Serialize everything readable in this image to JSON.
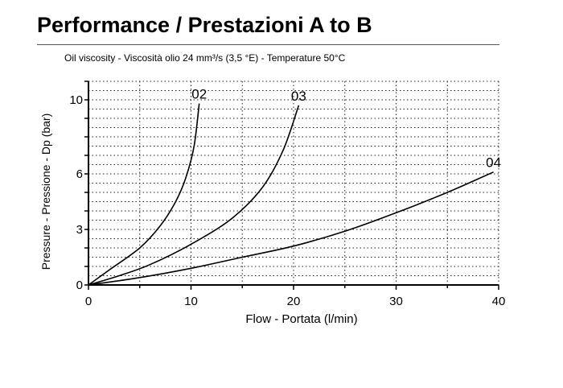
{
  "chart_data": {
    "type": "line",
    "title": "Performance / Prestazioni A to B",
    "subtitle": "Oil viscosity - Viscosità olio 24 mm³/s (3,5 °E) - Temperature 50°C",
    "xlabel": "Flow - Portata (l/min)",
    "ylabel": "Pressure - Pressione - Dp (bar)",
    "xlim": [
      0,
      40
    ],
    "ylim": [
      0,
      11
    ],
    "xticks": [
      0,
      10,
      20,
      30,
      40
    ],
    "yticks": [
      0,
      3,
      6,
      10
    ],
    "grid": "dotted",
    "series": [
      {
        "name": "02",
        "x": [
          0,
          2,
          5,
          7,
          8.5,
          9.5,
          10.3,
          10.8
        ],
        "y": [
          0,
          0.8,
          2.0,
          3.2,
          4.5,
          5.8,
          7.5,
          9.8
        ]
      },
      {
        "name": "03",
        "x": [
          0,
          3,
          6,
          10,
          14,
          17,
          19,
          20.5
        ],
        "y": [
          0,
          0.5,
          1.1,
          2.2,
          3.6,
          5.3,
          7.3,
          9.7
        ]
      },
      {
        "name": "04",
        "x": [
          0,
          5,
          10,
          15,
          20,
          25,
          30,
          35,
          39.5
        ],
        "y": [
          0,
          0.4,
          0.9,
          1.5,
          2.1,
          2.9,
          3.9,
          5.0,
          6.1
        ]
      }
    ]
  }
}
